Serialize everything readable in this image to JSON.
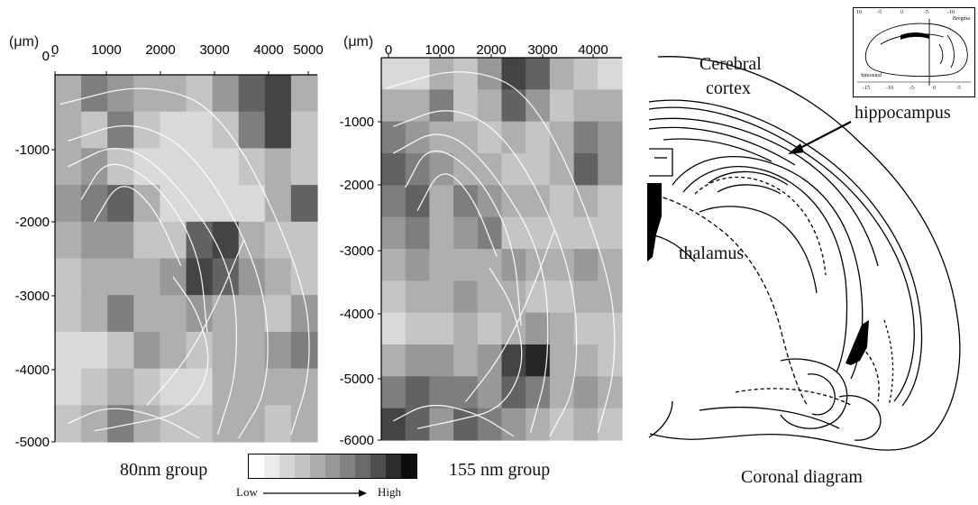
{
  "chart_data": [
    {
      "type": "heatmap",
      "caption": "80nm group",
      "unit_label": "(μm)",
      "x_ticks": [
        "0",
        "1000",
        "2000",
        "3000",
        "4000",
        "5000"
      ],
      "y_ticks": [
        "0",
        "-1000",
        "-2000",
        "-3000",
        "-4000",
        "-5000"
      ],
      "xlim": [
        0,
        5000
      ],
      "ylim": [
        -5000,
        0
      ],
      "grid_cols": 10,
      "grid_rows": 10,
      "levels": [
        [
          3,
          5,
          4,
          3,
          3,
          2,
          4,
          6,
          7,
          3
        ],
        [
          3,
          2,
          5,
          2,
          1,
          1,
          2,
          5,
          7,
          2
        ],
        [
          3,
          4,
          2,
          1,
          1,
          1,
          1,
          2,
          3,
          2
        ],
        [
          4,
          5,
          6,
          3,
          1,
          1,
          1,
          1,
          3,
          6
        ],
        [
          3,
          4,
          4,
          2,
          2,
          6,
          7,
          3,
          2,
          2
        ],
        [
          2,
          3,
          3,
          3,
          4,
          7,
          6,
          4,
          3,
          2
        ],
        [
          2,
          3,
          5,
          3,
          3,
          4,
          3,
          3,
          2,
          4
        ],
        [
          1,
          1,
          2,
          4,
          3,
          2,
          3,
          3,
          4,
          5
        ],
        [
          1,
          2,
          3,
          2,
          1,
          1,
          3,
          3,
          3,
          3
        ],
        [
          2,
          3,
          5,
          3,
          2,
          2,
          3,
          3,
          2,
          3
        ]
      ]
    },
    {
      "type": "heatmap",
      "caption": "155 nm group",
      "unit_label": "(μm)",
      "x_ticks": [
        "0",
        "1000",
        "2000",
        "3000",
        "4000"
      ],
      "y_ticks": [
        "-1000",
        "-2000",
        "-3000",
        "-4000",
        "-5000",
        "-6000"
      ],
      "xlim": [
        0,
        4700
      ],
      "ylim": [
        -6000,
        0
      ],
      "grid_cols": 10,
      "grid_rows": 12,
      "levels": [
        [
          1,
          1,
          3,
          2,
          4,
          7,
          6,
          3,
          2,
          1
        ],
        [
          3,
          3,
          5,
          2,
          3,
          6,
          4,
          2,
          3,
          3
        ],
        [
          5,
          4,
          3,
          3,
          2,
          3,
          2,
          3,
          5,
          4
        ],
        [
          6,
          5,
          4,
          3,
          3,
          2,
          2,
          3,
          6,
          4
        ],
        [
          5,
          6,
          3,
          5,
          4,
          3,
          3,
          2,
          3,
          2
        ],
        [
          4,
          5,
          3,
          4,
          5,
          2,
          2,
          2,
          2,
          2
        ],
        [
          3,
          4,
          3,
          3,
          3,
          4,
          3,
          3,
          4,
          3
        ],
        [
          2,
          3,
          3,
          4,
          3,
          3,
          2,
          2,
          3,
          3
        ],
        [
          1,
          2,
          2,
          3,
          2,
          3,
          4,
          3,
          2,
          2
        ],
        [
          3,
          4,
          4,
          3,
          4,
          7,
          8,
          3,
          3,
          2
        ],
        [
          5,
          6,
          5,
          5,
          4,
          6,
          5,
          3,
          4,
          3
        ],
        [
          7,
          6,
          4,
          6,
          5,
          4,
          3,
          2,
          3,
          2
        ]
      ]
    }
  ],
  "legend": {
    "low_label": "Low",
    "high_label": "High",
    "swatches": [
      "#ffffff",
      "#ececec",
      "#d6d6d6",
      "#c2c2c2",
      "#adadad",
      "#989898",
      "#828282",
      "#6a6a6a",
      "#4e4e4e",
      "#2c2c2c",
      "#0d0d0d"
    ]
  },
  "diagram": {
    "labels": {
      "cortex_line1": "Cerebral",
      "cortex_line2": "cortex",
      "hippocampus": "hippocampus",
      "thalamus": "thalamus"
    },
    "caption": "Coronal diagram",
    "inset_labels": {
      "interaural": "Interaural",
      "bregma": "Bregma",
      "tick_top_1": "10",
      "tick_top_2": "-5",
      "tick_top_3": "0",
      "tick_top_4": "-5",
      "tick_top_5": "-10",
      "tick_bottom_1": "-15",
      "tick_bottom_2": "-10",
      "tick_bottom_3": "-5",
      "tick_bottom_4": "0",
      "tick_bottom_5": "-5"
    }
  }
}
